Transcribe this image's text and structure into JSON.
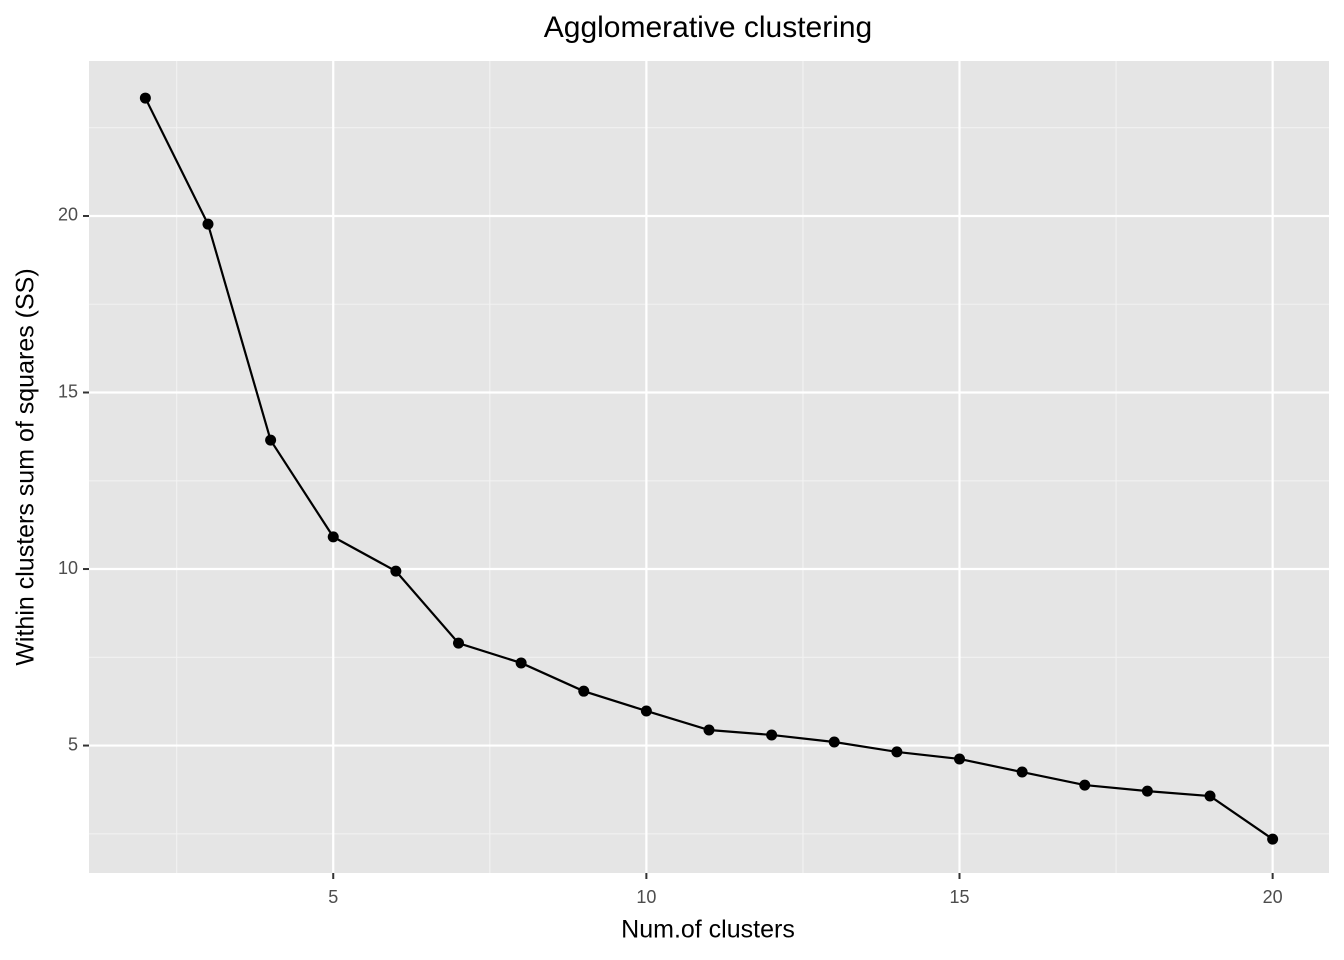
{
  "chart_data": {
    "type": "line",
    "title": "Agglomerative clustering",
    "x_label": "Num.of clusters",
    "y_label": "Within clusters sum of squares (SS)",
    "x": [
      2,
      3,
      4,
      5,
      6,
      7,
      8,
      9,
      10,
      11,
      12,
      13,
      14,
      15,
      16,
      17,
      18,
      19,
      20
    ],
    "values": [
      23.34,
      19.77,
      13.65,
      10.91,
      9.94,
      7.9,
      7.34,
      6.54,
      5.98,
      5.44,
      5.3,
      5.1,
      4.82,
      4.62,
      4.25,
      3.88,
      3.71,
      3.57,
      2.35
    ],
    "color": "#000000",
    "xlim": [
      1.1,
      20.9
    ],
    "xticks": [
      5,
      10,
      15,
      20
    ],
    "ylim": [
      1.39,
      24.39
    ],
    "yticks": [
      5,
      10,
      15,
      20
    ],
    "grid": true
  }
}
